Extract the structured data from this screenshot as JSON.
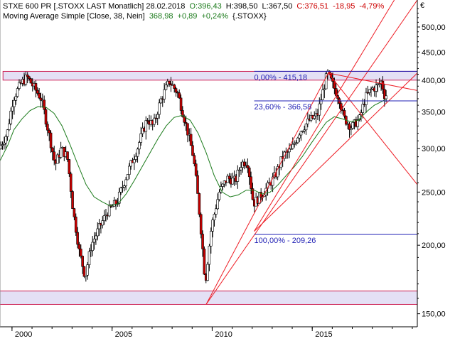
{
  "legend": {
    "line1": {
      "name": "STXE 600 PR [.STOXX LAST Monatlich] 28.02.2018",
      "open": "O:396,43",
      "high": "H:398,50",
      "low": "L:367,50",
      "close": "C:376,51",
      "change": "-18,95",
      "change_pct": "-4,79%"
    },
    "line2": {
      "name": "Moving Average Simple [Close, 38, Nein]",
      "value": "368,98",
      "change": "+0,89",
      "change_pct": "+0,24%",
      "symbol": "{.STOXX}"
    }
  },
  "currency": "€",
  "colors": {
    "bull_candle": "#ffffff",
    "bear_candle": "#cc0000",
    "candle_outline": "#000000",
    "moving_average": "#1a7a1a",
    "trend_lines": "#ee1c24",
    "fib_lines": "#1f1fb4",
    "zone_fill": "#e4e0f5",
    "zone_border": "#cc2255"
  },
  "chart_data": {
    "type": "candlestick",
    "y_scale": "log",
    "ylim": [
      142,
      560
    ],
    "xlim": [
      1998.9,
      2019.75
    ],
    "y_ticks": [
      "500,00",
      "450,00",
      "400,00",
      "350,00",
      "300,00",
      "250,00",
      "200,00",
      "150,00"
    ],
    "y_tick_values": [
      500,
      450,
      400,
      350,
      300,
      250,
      200,
      150
    ],
    "x_ticks": [
      "2000",
      "2005",
      "2010",
      "2015"
    ],
    "x_tick_values": [
      1999.5,
      2004.5,
      2009.5,
      2014.5
    ],
    "price_path": [
      [
        1998.9,
        300
      ],
      [
        1999.3,
        320
      ],
      [
        1999.6,
        370
      ],
      [
        2000.0,
        395
      ],
      [
        2000.3,
        405
      ],
      [
        2000.6,
        390
      ],
      [
        2001.0,
        370
      ],
      [
        2001.3,
        330
      ],
      [
        2001.7,
        280
      ],
      [
        2002.0,
        300
      ],
      [
        2002.3,
        290
      ],
      [
        2002.6,
        230
      ],
      [
        2002.9,
        195
      ],
      [
        2003.2,
        175
      ],
      [
        2003.5,
        200
      ],
      [
        2003.9,
        215
      ],
      [
        2004.3,
        230
      ],
      [
        2004.8,
        240
      ],
      [
        2005.3,
        270
      ],
      [
        2005.8,
        300
      ],
      [
        2006.3,
        340
      ],
      [
        2006.6,
        330
      ],
      [
        2007.0,
        370
      ],
      [
        2007.4,
        398
      ],
      [
        2007.8,
        380
      ],
      [
        2008.2,
        335
      ],
      [
        2008.6,
        290
      ],
      [
        2008.9,
        230
      ],
      [
        2009.2,
        170
      ],
      [
        2009.5,
        215
      ],
      [
        2009.9,
        250
      ],
      [
        2010.3,
        265
      ],
      [
        2010.7,
        262
      ],
      [
        2011.0,
        282
      ],
      [
        2011.3,
        285
      ],
      [
        2011.6,
        238
      ],
      [
        2011.9,
        245
      ],
      [
        2012.3,
        255
      ],
      [
        2012.7,
        268
      ],
      [
        2013.1,
        292
      ],
      [
        2013.5,
        298
      ],
      [
        2013.9,
        322
      ],
      [
        2014.4,
        338
      ],
      [
        2014.8,
        345
      ],
      [
        2015.0,
        372
      ],
      [
        2015.3,
        412
      ],
      [
        2015.6,
        390
      ],
      [
        2015.9,
        370
      ],
      [
        2016.1,
        342
      ],
      [
        2016.5,
        328
      ],
      [
        2016.9,
        340
      ],
      [
        2017.2,
        372
      ],
      [
        2017.5,
        385
      ],
      [
        2017.8,
        390
      ],
      [
        2018.0,
        398
      ],
      [
        2018.15,
        376
      ]
    ],
    "moving_average": [
      [
        1998.9,
        285
      ],
      [
        1999.3,
        305
      ],
      [
        1999.6,
        325
      ],
      [
        2000.0,
        340
      ],
      [
        2000.4,
        352
      ],
      [
        2000.8,
        358
      ],
      [
        2001.2,
        357
      ],
      [
        2001.6,
        348
      ],
      [
        2002.0,
        330
      ],
      [
        2002.4,
        305
      ],
      [
        2002.8,
        280
      ],
      [
        2003.2,
        258
      ],
      [
        2003.6,
        245
      ],
      [
        2004.0,
        240
      ],
      [
        2004.4,
        236
      ],
      [
        2004.8,
        238
      ],
      [
        2005.2,
        248
      ],
      [
        2005.6,
        262
      ],
      [
        2006.0,
        278
      ],
      [
        2006.4,
        295
      ],
      [
        2006.8,
        313
      ],
      [
        2007.2,
        330
      ],
      [
        2007.6,
        342
      ],
      [
        2008.0,
        345
      ],
      [
        2008.4,
        338
      ],
      [
        2008.8,
        320
      ],
      [
        2009.2,
        295
      ],
      [
        2009.6,
        268
      ],
      [
        2010.0,
        250
      ],
      [
        2010.4,
        245
      ],
      [
        2010.8,
        247
      ],
      [
        2011.2,
        252
      ],
      [
        2011.6,
        252
      ],
      [
        2012.0,
        248
      ],
      [
        2012.4,
        250
      ],
      [
        2012.8,
        258
      ],
      [
        2013.2,
        268
      ],
      [
        2013.6,
        278
      ],
      [
        2014.0,
        290
      ],
      [
        2014.4,
        305
      ],
      [
        2014.8,
        320
      ],
      [
        2015.2,
        335
      ],
      [
        2015.6,
        343
      ],
      [
        2016.0,
        340
      ],
      [
        2016.4,
        336
      ],
      [
        2016.8,
        338
      ],
      [
        2017.2,
        350
      ],
      [
        2017.6,
        360
      ],
      [
        2018.0,
        366
      ],
      [
        2018.15,
        369
      ]
    ],
    "horizontal_zones": [
      {
        "low": 400,
        "high": 415,
        "x_start": 1999.05,
        "x_end": 2019.75
      },
      {
        "low": 156,
        "high": 165,
        "x_start": 1998.9,
        "x_end": 2019.75
      }
    ],
    "trend_lines": [
      {
        "points": [
          [
            2009.2,
            156
          ],
          [
            2015.3,
            412
          ]
        ]
      },
      {
        "points": [
          [
            2009.2,
            156
          ],
          [
            2019.75,
            560
          ]
        ]
      },
      {
        "points": [
          [
            2011.6,
            212
          ],
          [
            2019.75,
            412
          ]
        ]
      },
      {
        "points": [
          [
            2011.6,
            212
          ],
          [
            2018.6,
            560
          ]
        ]
      },
      {
        "points": [
          [
            2015.3,
            412
          ],
          [
            2019.75,
            258
          ]
        ]
      },
      {
        "points": [
          [
            2015.3,
            412
          ],
          [
            2019.75,
            383
          ]
        ]
      }
    ],
    "fibonacci": {
      "x_start": 2011.6,
      "x_end": 2019.75,
      "levels": [
        {
          "label": "0,00% - 415,18",
          "value": 415.18
        },
        {
          "label": "23,60% - 366,58",
          "value": 366.58
        },
        {
          "label": "100,00% - 209,26",
          "value": 209.26
        }
      ]
    }
  }
}
